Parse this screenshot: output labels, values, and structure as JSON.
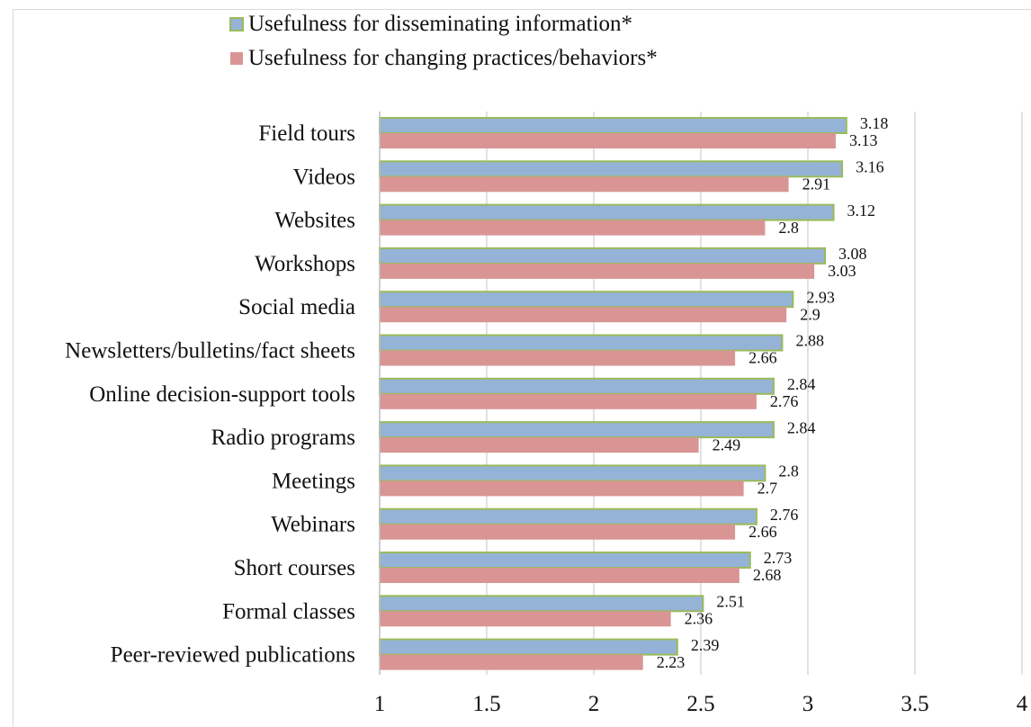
{
  "chart_data": {
    "type": "bar",
    "orientation": "horizontal",
    "categories": [
      "Field tours",
      "Videos",
      "Websites",
      "Workshops",
      "Social media",
      "Newsletters/bulletins/fact sheets",
      "Online decision-support tools",
      "Radio programs",
      "Meetings",
      "Webinars",
      "Short courses",
      "Formal classes",
      "Peer-reviewed publications"
    ],
    "series": [
      {
        "name": "Usefulness for disseminating information*",
        "color": "#95b3d7",
        "edge_color": "#9bbb59",
        "values": [
          3.18,
          3.16,
          3.12,
          3.08,
          2.93,
          2.88,
          2.84,
          2.84,
          2.8,
          2.76,
          2.73,
          2.51,
          2.39
        ],
        "labels": [
          "3.18",
          "3.16",
          "3.12",
          "3.08",
          "2.93",
          "2.88",
          "2.84",
          "2.84",
          "2.8",
          "2.76",
          "2.73",
          "2.51",
          "2.39"
        ]
      },
      {
        "name": "Usefulness for changing practices/behaviors*",
        "color": "#d99594",
        "edge_color": "#d99594",
        "values": [
          3.13,
          2.91,
          2.8,
          3.03,
          2.9,
          2.66,
          2.76,
          2.49,
          2.7,
          2.66,
          2.68,
          2.36,
          2.23
        ],
        "labels": [
          "3.13",
          "2.91",
          "2.8",
          "3.03",
          "2.9",
          "2.66",
          "2.76",
          "2.49",
          "2.7",
          "2.66",
          "2.68",
          "2.36",
          "2.23"
        ]
      }
    ],
    "xlim": [
      1,
      4
    ],
    "xticks": [
      "1",
      "1.5",
      "2",
      "2.5",
      "3",
      "3.5",
      "4"
    ],
    "grid": true,
    "legend_position": "top-left",
    "xlabel": "",
    "ylabel": ""
  }
}
